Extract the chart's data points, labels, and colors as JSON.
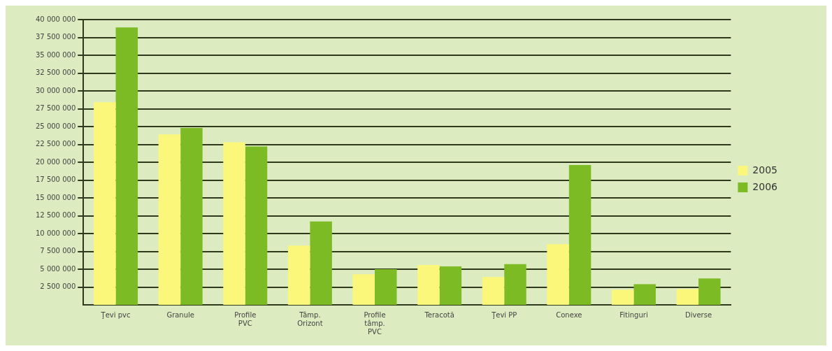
{
  "chart_data": {
    "type": "bar",
    "categories": [
      "Ţevi pvc",
      "Granule",
      "Profile PVC",
      "Tâmp. Orizont",
      "Profile tâmp. PVC",
      "Teracotă",
      "Ţevi PP",
      "Conexe",
      "Fitinguri",
      "Diverse"
    ],
    "series": [
      {
        "name": "2005",
        "color": "#fbf77a",
        "values": [
          28400000,
          23900000,
          22800000,
          8300000,
          4300000,
          5600000,
          3900000,
          8500000,
          2100000,
          2200000
        ]
      },
      {
        "name": "2006",
        "color": "#7dbb25",
        "values": [
          38900000,
          24800000,
          22200000,
          11700000,
          5000000,
          5400000,
          5700000,
          19600000,
          2900000,
          3700000
        ]
      }
    ],
    "ylim": [
      0,
      40000000
    ],
    "yticks": [
      {
        "value": 2500000,
        "label": "2 500 000"
      },
      {
        "value": 5000000,
        "label": "5 000 000"
      },
      {
        "value": 7500000,
        "label": "7 500 000"
      },
      {
        "value": 10000000,
        "label": "10 000 000"
      },
      {
        "value": 12500000,
        "label": "12 500 000"
      },
      {
        "value": 15000000,
        "label": "15 000 000"
      },
      {
        "value": 17500000,
        "label": "17 500 000"
      },
      {
        "value": 20000000,
        "label": "20 000 000"
      },
      {
        "value": 22500000,
        "label": "22 500 000"
      },
      {
        "value": 25000000,
        "label": "25 000 000"
      },
      {
        "value": 27500000,
        "label": "27 500 000"
      },
      {
        "value": 30000000,
        "label": "30 000 000"
      },
      {
        "value": 32500000,
        "label": "32 500 000"
      },
      {
        "value": 35000000,
        "label": "35 000 000"
      },
      {
        "value": 37500000,
        "label": "37 500 000"
      },
      {
        "value": 40000000,
        "label": "40 000 000"
      }
    ],
    "grid": "y",
    "legend": "right"
  }
}
